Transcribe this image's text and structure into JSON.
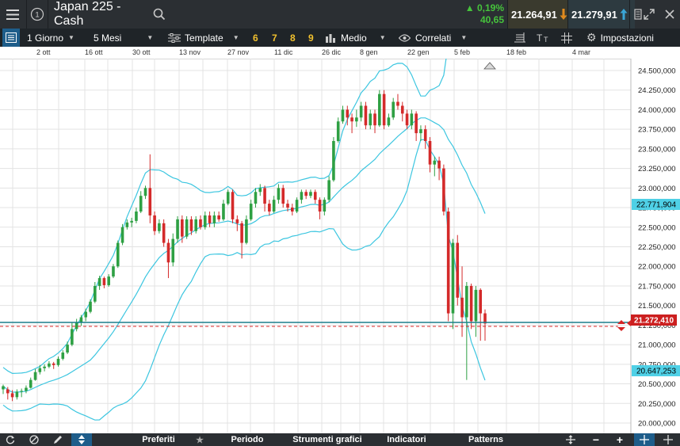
{
  "topbar": {
    "menu_icon": "hamburger-icon",
    "info_icon": "info-circle-icon",
    "instrument": "Japan 225 - Cash",
    "change_pct": "0,19%",
    "change_value": "40,65",
    "bid": "21.264,91",
    "ask": "21.279,91",
    "colors": {
      "bid_bg": "#3a3a2e",
      "down_arrow": "#e08a1e",
      "up_arrow": "#3aa5d6"
    }
  },
  "toolbar": {
    "interval": "1 Giorno",
    "range": "5 Mesi",
    "template": "Template",
    "presets": [
      "6",
      "7",
      "8",
      "9"
    ],
    "indicator": "Medio",
    "correlated": "Correlati",
    "settings": "Impostazioni"
  },
  "date_axis": [
    "2 ott",
    "16 ott",
    "30 ott",
    "13 nov",
    "27 nov",
    "11 dic",
    "26 dic",
    "8 gen",
    "22 gen",
    "5 feb",
    "18 feb",
    "4 mar"
  ],
  "price_axis": [
    "24.500,000",
    "24.250,000",
    "24.000,000",
    "23.750,000",
    "23.500,000",
    "23.250,000",
    "23.000,000",
    "22.750,000",
    "22.500,000",
    "22.250,000",
    "22.000,000",
    "21.750,000",
    "21.500,000",
    "21.250,000",
    "21.000,000",
    "20.750,000",
    "20.500,000",
    "20.250,000",
    "20.000,000"
  ],
  "tags": {
    "upper_band": "22.771,904",
    "current_price": "21.272,410",
    "lower_band": "20.647,253"
  },
  "bottombar": {
    "favorites": "Preferiti",
    "period": "Periodo",
    "drawing_tools": "Strumenti grafici",
    "indicators": "Indicatori",
    "patterns": "Patterns"
  },
  "chart_data": {
    "type": "candlestick",
    "ylim": [
      19900,
      24600
    ],
    "bollinger": {
      "upper_last": 22771.904,
      "lower_last": 20647.253
    },
    "current_price": 21272.41,
    "candles": [
      [
        20430,
        20470,
        20370,
        20490
      ],
      [
        20430,
        20380,
        20300,
        20460
      ],
      [
        20380,
        20330,
        20280,
        20420
      ],
      [
        20330,
        20400,
        20300,
        20430
      ],
      [
        20400,
        20410,
        20330,
        20440
      ],
      [
        20410,
        20450,
        20380,
        20480
      ],
      [
        20450,
        20550,
        20440,
        20580
      ],
      [
        20550,
        20650,
        20540,
        20690
      ],
      [
        20650,
        20700,
        20620,
        20740
      ],
      [
        20700,
        20720,
        20660,
        20750
      ],
      [
        20720,
        20760,
        20700,
        20790
      ],
      [
        20760,
        20740,
        20690,
        20780
      ],
      [
        20740,
        20820,
        20720,
        20850
      ],
      [
        20820,
        20900,
        20800,
        20930
      ],
      [
        20900,
        21000,
        20880,
        21040
      ],
      [
        21000,
        21200,
        20980,
        21280
      ],
      [
        21200,
        21280,
        21170,
        21330
      ],
      [
        21280,
        21350,
        21240,
        21380
      ],
      [
        21350,
        21420,
        21300,
        21460
      ],
      [
        21420,
        21550,
        21400,
        21580
      ],
      [
        21550,
        21750,
        21530,
        21800
      ],
      [
        21750,
        21850,
        21700,
        21880
      ],
      [
        21850,
        21760,
        21720,
        21870
      ],
      [
        21760,
        21870,
        21740,
        21900
      ],
      [
        21870,
        22000,
        21850,
        22030
      ],
      [
        22000,
        22300,
        21980,
        22330
      ],
      [
        22300,
        22500,
        22270,
        22540
      ],
      [
        22500,
        22560,
        22470,
        22600
      ],
      [
        22560,
        22580,
        22500,
        22620
      ],
      [
        22580,
        22700,
        22550,
        22750
      ],
      [
        22700,
        22900,
        22680,
        22960
      ],
      [
        22900,
        23000,
        22860,
        23030
      ],
      [
        23000,
        22650,
        22550,
        23430
      ],
      [
        22650,
        22450,
        22400,
        22700
      ],
      [
        22450,
        22550,
        22420,
        22600
      ],
      [
        22550,
        22300,
        22250,
        22600
      ],
      [
        22300,
        22050,
        21850,
        22350
      ],
      [
        22050,
        22350,
        22000,
        22420
      ],
      [
        22350,
        22600,
        22300,
        22640
      ],
      [
        22600,
        22380,
        22300,
        22650
      ],
      [
        22380,
        22600,
        22350,
        22640
      ],
      [
        22600,
        22450,
        22400,
        22640
      ],
      [
        22450,
        22600,
        22420,
        22640
      ],
      [
        22600,
        22500,
        22470,
        22650
      ],
      [
        22500,
        22650,
        22470,
        22700
      ],
      [
        22650,
        22550,
        22500,
        22700
      ],
      [
        22550,
        22650,
        22500,
        22700
      ],
      [
        22650,
        22600,
        22570,
        22700
      ],
      [
        22600,
        22800,
        22580,
        22850
      ],
      [
        22800,
        22950,
        22780,
        22980
      ],
      [
        22950,
        22600,
        22550,
        22980
      ],
      [
        22600,
        22550,
        22450,
        22650
      ],
      [
        22550,
        22300,
        22100,
        22580
      ],
      [
        22300,
        22600,
        22280,
        22650
      ],
      [
        22600,
        22800,
        22580,
        22850
      ],
      [
        22800,
        22950,
        22750,
        23000
      ],
      [
        22950,
        23000,
        22900,
        23050
      ],
      [
        23000,
        22800,
        22700,
        23030
      ],
      [
        22800,
        22700,
        22650,
        22850
      ],
      [
        22700,
        22850,
        22680,
        22900
      ],
      [
        22850,
        23000,
        22800,
        23050
      ],
      [
        23000,
        22800,
        22750,
        23040
      ],
      [
        22800,
        22750,
        22700,
        22850
      ],
      [
        22750,
        22700,
        22650,
        22800
      ],
      [
        22700,
        22850,
        22680,
        22880
      ],
      [
        22850,
        22950,
        22800,
        22980
      ],
      [
        22950,
        22900,
        22860,
        22980
      ],
      [
        22900,
        22950,
        22870,
        22980
      ],
      [
        22950,
        22850,
        22800,
        22980
      ],
      [
        22850,
        22700,
        22600,
        22880
      ],
      [
        22700,
        22850,
        22650,
        22880
      ],
      [
        22850,
        23100,
        22820,
        23150
      ],
      [
        23100,
        23600,
        23080,
        23650
      ],
      [
        23600,
        23850,
        23580,
        23900
      ],
      [
        23850,
        24000,
        23820,
        24050
      ],
      [
        24000,
        23900,
        23800,
        24050
      ],
      [
        23900,
        23850,
        23700,
        23950
      ],
      [
        23850,
        23900,
        23780,
        24000
      ],
      [
        23900,
        24050,
        23850,
        24100
      ],
      [
        24050,
        23800,
        23750,
        24100
      ],
      [
        23800,
        23950,
        23750,
        24000
      ],
      [
        23950,
        23800,
        23700,
        24000
      ],
      [
        23800,
        24200,
        23780,
        24250
      ],
      [
        24200,
        23800,
        23750,
        24250
      ],
      [
        23800,
        23900,
        23780,
        23950
      ],
      [
        23900,
        24100,
        23870,
        24150
      ],
      [
        24100,
        24050,
        24000,
        24200
      ],
      [
        24050,
        23950,
        23850,
        24100
      ],
      [
        23950,
        23800,
        23750,
        24000
      ],
      [
        23800,
        23950,
        23750,
        24000
      ],
      [
        23950,
        23700,
        23600,
        23980
      ],
      [
        23700,
        23750,
        23600,
        23800
      ],
      [
        23750,
        23600,
        23500,
        23800
      ],
      [
        23600,
        23300,
        23200,
        23650
      ],
      [
        23300,
        23350,
        23150,
        23400
      ],
      [
        23350,
        23250,
        23100,
        23400
      ],
      [
        23250,
        22700,
        22650,
        23300
      ],
      [
        22700,
        21400,
        21300,
        22750
      ],
      [
        21400,
        22300,
        21200,
        22350
      ],
      [
        22300,
        21600,
        21500,
        22400
      ],
      [
        21600,
        21350,
        21100,
        22000
      ],
      [
        21350,
        21750,
        20550,
        21800
      ],
      [
        21750,
        21300,
        21200,
        21780
      ],
      [
        21300,
        21700,
        21100,
        21750
      ],
      [
        21700,
        21400,
        21050,
        21720
      ],
      [
        21400,
        21270,
        21050,
        21450
      ]
    ]
  }
}
